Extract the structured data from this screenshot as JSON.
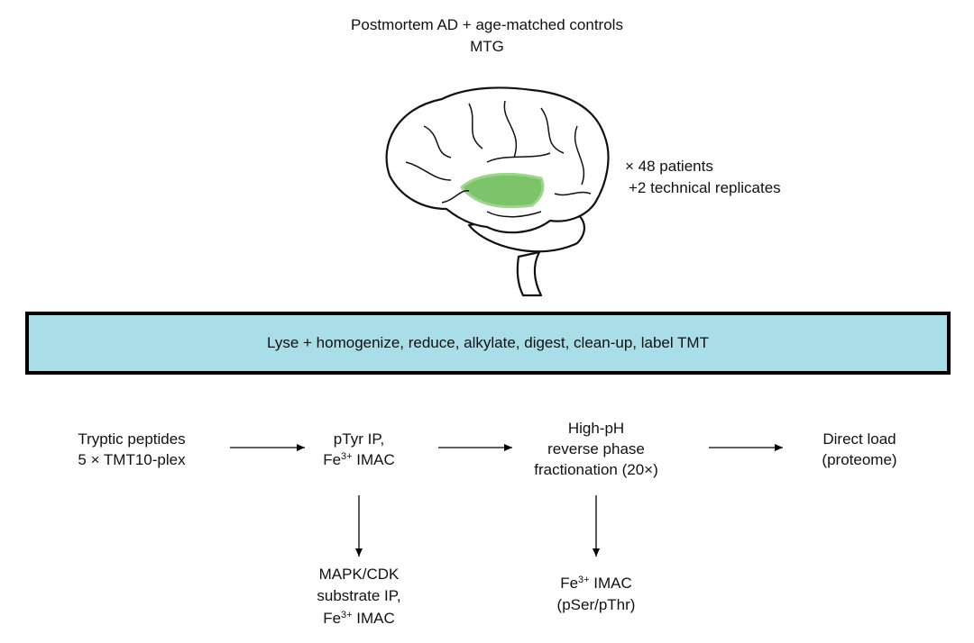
{
  "header": {
    "line1": "Postmortem AD + age-matched controls",
    "line2": "MTG"
  },
  "cohort": {
    "patients": "× 48 patients",
    "replicates": "+2 technical replicates"
  },
  "brain": {
    "icon": "brain-illustration",
    "highlight_color": "#7cc36a",
    "highlight_region": "MTG"
  },
  "process_box": {
    "label": "Lyse + homogenize, reduce, alkylate, digest, clean-up, label TMT",
    "fill": "#a9dde8"
  },
  "steps": {
    "tryptic": {
      "line1": "Tryptic peptides",
      "line2": "5 × TMT10-plex"
    },
    "ptyr": {
      "line1": "pTyr IP,",
      "fe": "Fe",
      "sup": "3+",
      "rest": " IMAC"
    },
    "highph": {
      "line1": "High-pH",
      "line2": "reverse phase",
      "line3": "fractionation (20×)"
    },
    "direct": {
      "line1": "Direct load",
      "line2": "(proteome)"
    },
    "mapk": {
      "line1": "MAPK/CDK",
      "line2": "substrate IP,",
      "fe": "Fe",
      "sup": "3+",
      "rest": " IMAC"
    },
    "imac": {
      "fe": "Fe",
      "sup": "3+",
      "rest": " IMAC",
      "line2": "(pSer/pThr)"
    }
  }
}
